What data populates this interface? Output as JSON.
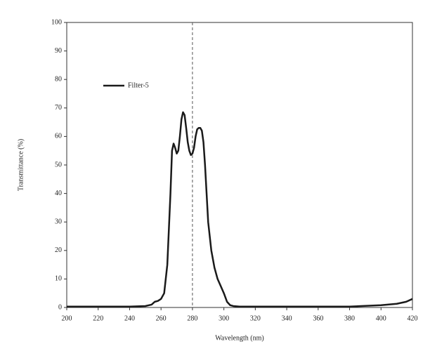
{
  "chart_data": {
    "type": "line",
    "x_label": "Wavelength (nm)",
    "y_label": "Transmittance (%)",
    "x": [
      200,
      220,
      240,
      250,
      254,
      256,
      258,
      260,
      262,
      264,
      266,
      267,
      268,
      269,
      270,
      271,
      272,
      273,
      274,
      275,
      276,
      277,
      278,
      279,
      280,
      281,
      282,
      283,
      284,
      285,
      286,
      287,
      288,
      289,
      290,
      292,
      294,
      296,
      298,
      300,
      302,
      304,
      306,
      310,
      340,
      380,
      400,
      410,
      416,
      420
    ],
    "series": [
      {
        "name": "Filter-5",
        "color": "#1a1a1a",
        "values": [
          0.3,
          0.3,
          0.3,
          0.5,
          1,
          2,
          2.3,
          3,
          5,
          15,
          40,
          55,
          57.5,
          56,
          54,
          55,
          60,
          66,
          68.5,
          67.5,
          63,
          58,
          55,
          53.5,
          54,
          56,
          60,
          62.5,
          63,
          63,
          62,
          58,
          50,
          40,
          30,
          20,
          14,
          10,
          7.5,
          5,
          2,
          0.8,
          0.5,
          0.3,
          0.3,
          0.3,
          0.8,
          1.3,
          2,
          3
        ]
      }
    ],
    "vline": 280,
    "xlim": [
      200,
      420
    ],
    "xticks": [
      200,
      220,
      240,
      260,
      280,
      300,
      320,
      340,
      360,
      380,
      400,
      420
    ],
    "ylim": [
      0,
      100
    ],
    "yticks": [
      0,
      10,
      20,
      30,
      40,
      50,
      60,
      70,
      80,
      90,
      100
    ],
    "legend": "upper left"
  }
}
